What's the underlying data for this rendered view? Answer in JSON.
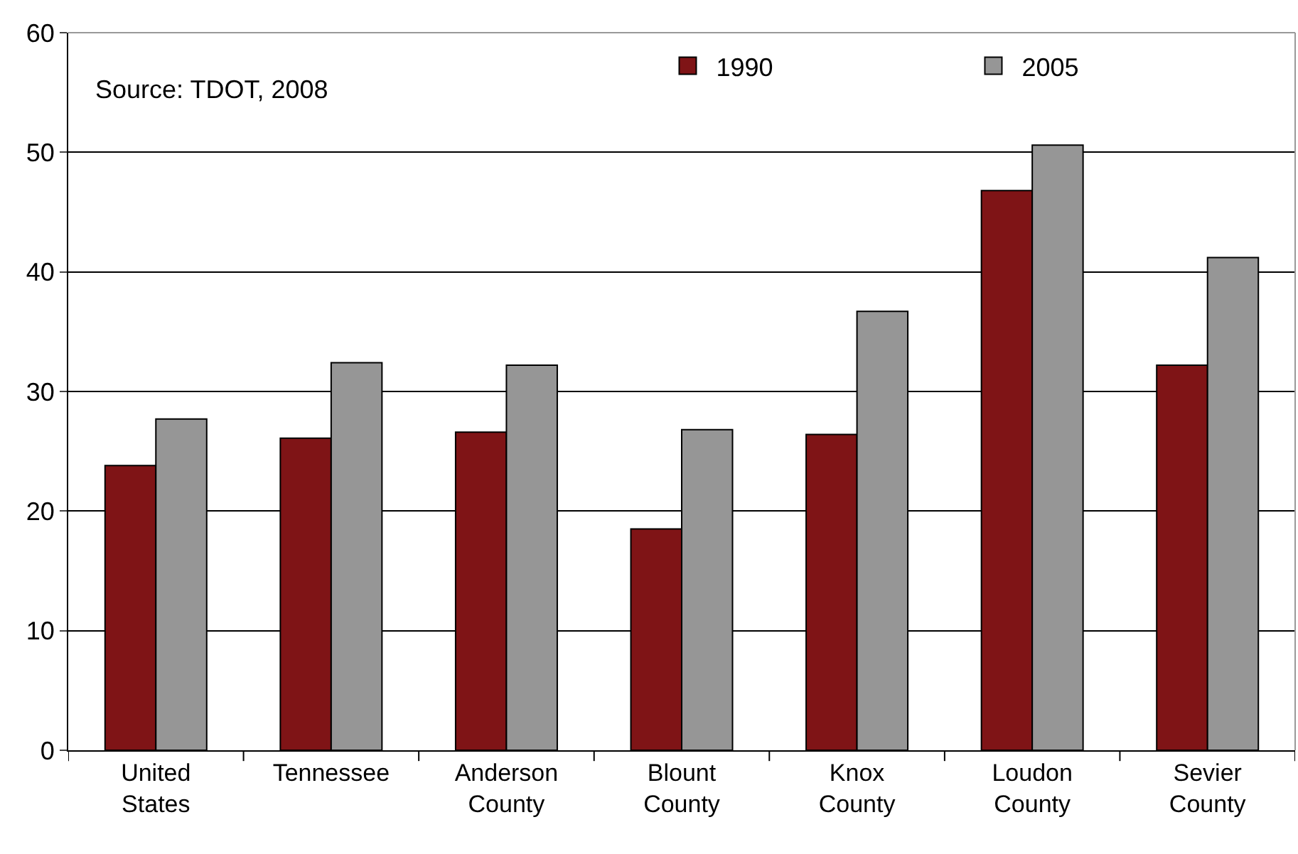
{
  "chart_data": {
    "type": "bar",
    "categories": [
      "United\nStates",
      "Tennessee",
      "Anderson\nCounty",
      "Blount\nCounty",
      "Knox\nCounty",
      "Loudon\nCounty",
      "Sevier\nCounty"
    ],
    "series": [
      {
        "name": "1990",
        "color": "#7f1416",
        "values": [
          23.8,
          26.1,
          26.6,
          18.5,
          26.4,
          46.8,
          32.2
        ]
      },
      {
        "name": "2005",
        "color": "#969696",
        "values": [
          27.7,
          32.4,
          32.2,
          26.8,
          36.7,
          50.6,
          41.2
        ]
      }
    ],
    "ylim": [
      0,
      60
    ],
    "yticks": [
      0,
      10,
      20,
      30,
      40,
      50,
      60
    ],
    "grid": "y",
    "legend": "top right",
    "annotations": [
      "Source: TDOT, 2008"
    ]
  }
}
